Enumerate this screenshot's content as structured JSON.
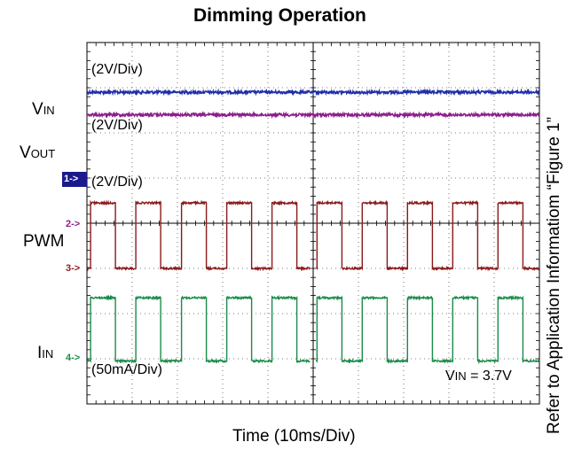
{
  "chart_data": {
    "type": "line",
    "title": "Dimming Operation",
    "xlabel": "Time (10ms/Div)",
    "side_note": "Refer to Application Informatiom “Figure 1”",
    "x_divisions": 10,
    "y_divisions": 8,
    "grid": true,
    "condition": {
      "prefix": "V",
      "sub": "IN",
      "text": " = 3.7V"
    },
    "channels": [
      {
        "id": "vin",
        "name": "V",
        "name_sub": "IN",
        "scale": "(2V/Div)",
        "color": "#1f2fa8",
        "type": "dc",
        "level_div": 6.9
      },
      {
        "id": "vout",
        "name": "V",
        "name_sub": "OUT",
        "scale": "(2V/Div)",
        "color": "#8c1f8c",
        "type": "dc",
        "level_div": 6.4
      },
      {
        "id": "pwm",
        "name": "PWM",
        "name_sub": "",
        "scale": "(2V/Div)",
        "color": "#8b1a1a",
        "type": "pwm",
        "low_div": 3.0,
        "high_div": 4.45
      },
      {
        "id": "iin",
        "name": "I",
        "name_sub": "IN",
        "scale": "(50mA/Div)",
        "color": "#1a8c4a",
        "type": "pwm",
        "low_div": 0.95,
        "high_div": 2.35
      }
    ],
    "pwm": {
      "period_div": 1.0,
      "duty": 0.55,
      "first_rise_div": 0.08,
      "timing_gap_div": 0.13
    },
    "markers": [
      {
        "label": "1->",
        "color": "#ffffff"
      },
      {
        "label": "2->",
        "color": "#8c1f8c"
      },
      {
        "label": "3->",
        "color": "#8b1a1a"
      },
      {
        "label": "4->",
        "color": "#1a8c4a"
      }
    ]
  }
}
